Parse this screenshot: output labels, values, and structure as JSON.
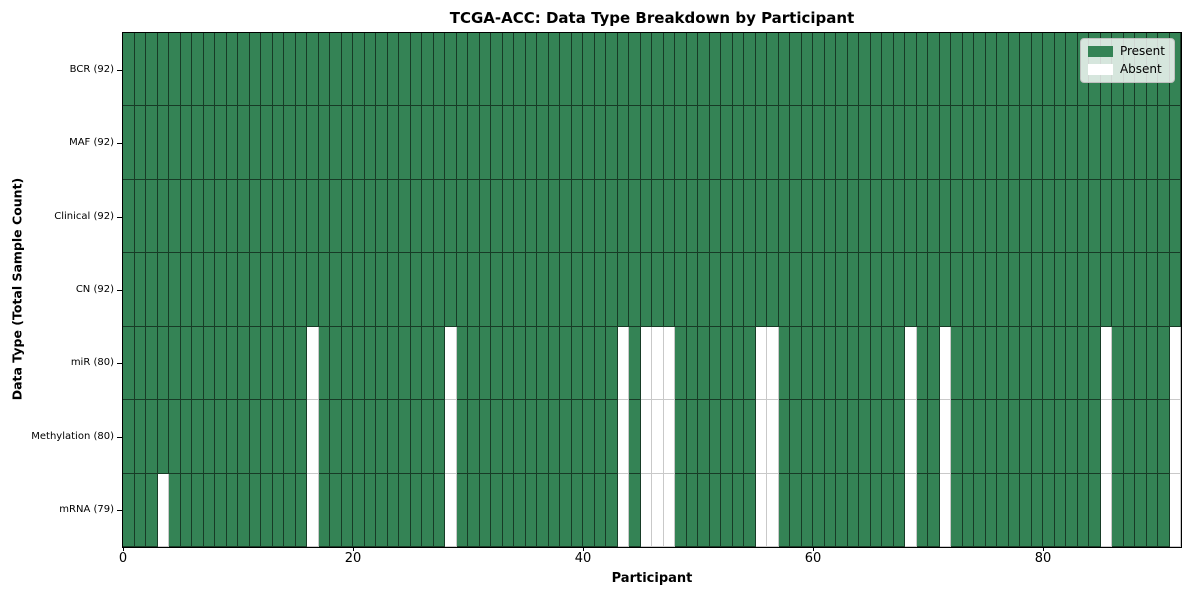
{
  "chart_data": {
    "type": "heatmap",
    "title": "TCGA-ACC: Data Type Breakdown by Participant",
    "xlabel": "Participant",
    "ylabel": "Data Type (Total Sample Count)",
    "n_participants": 92,
    "x_range": [
      0,
      92
    ],
    "x_ticks": [
      0,
      20,
      40,
      60,
      80
    ],
    "grid_lines": "cell-edges",
    "legend_position": "upper-right",
    "legend": [
      {
        "label": "Present",
        "color": "#348355"
      },
      {
        "label": "Absent",
        "color": "#ffffff"
      }
    ],
    "colors": {
      "present": "#348355",
      "absent": "#ffffff",
      "present_edge": "rgba(0,0,0,0.55)",
      "absent_edge": "#c9c9c9"
    },
    "rows": [
      {
        "label": "BCR (92)",
        "data_type": "BCR",
        "present_count": 92,
        "absent_participants": []
      },
      {
        "label": "MAF (92)",
        "data_type": "MAF",
        "present_count": 92,
        "absent_participants": []
      },
      {
        "label": "Clinical (92)",
        "data_type": "Clinical",
        "present_count": 92,
        "absent_participants": []
      },
      {
        "label": "CN (92)",
        "data_type": "CN",
        "present_count": 92,
        "absent_participants": []
      },
      {
        "label": "miR (80)",
        "data_type": "miR",
        "present_count": 80,
        "absent_participants": [
          16,
          28,
          43,
          45,
          46,
          47,
          55,
          56,
          68,
          71,
          85,
          91
        ]
      },
      {
        "label": "Methylation (80)",
        "data_type": "Methylation",
        "present_count": 80,
        "absent_participants": [
          16,
          28,
          43,
          45,
          46,
          47,
          55,
          56,
          68,
          71,
          85,
          91
        ]
      },
      {
        "label": "mRNA (79)",
        "data_type": "mRNA",
        "present_count": 79,
        "absent_participants": [
          3,
          16,
          28,
          43,
          45,
          46,
          47,
          55,
          56,
          68,
          71,
          85,
          91
        ]
      }
    ]
  }
}
